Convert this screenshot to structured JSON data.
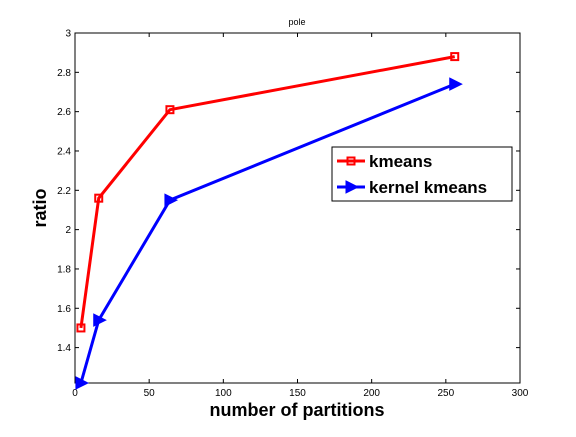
{
  "chart_data": {
    "type": "line",
    "title": "pole",
    "xlabel": "number of partitions",
    "ylabel": "ratio",
    "xlim": [
      0,
      300
    ],
    "ylim": [
      1.22,
      3
    ],
    "xticks": [
      0,
      50,
      100,
      150,
      200,
      250,
      300
    ],
    "yticks": [
      1.4,
      1.6,
      1.8,
      2,
      2.2,
      2.4,
      2.6,
      2.8,
      3
    ],
    "xtick_labels": [
      "0",
      "50",
      "100",
      "150",
      "200",
      "250",
      "300"
    ],
    "ytick_labels": [
      "1.4",
      "1.6",
      "1.8",
      "2",
      "2.2",
      "2.4",
      "2.6",
      "2.8",
      "3"
    ],
    "grid": false,
    "legend_position": "middle-right",
    "series": [
      {
        "name": "kmeans",
        "color": "#ff0000",
        "marker": "square",
        "x": [
          4,
          16,
          64,
          256
        ],
        "y": [
          1.5,
          2.16,
          2.61,
          2.88
        ]
      },
      {
        "name": "kernel kmeans",
        "color": "#0000ff",
        "marker": "triangle-right",
        "x": [
          4,
          16,
          64,
          256
        ],
        "y": [
          1.22,
          1.54,
          2.15,
          2.74
        ]
      }
    ]
  }
}
